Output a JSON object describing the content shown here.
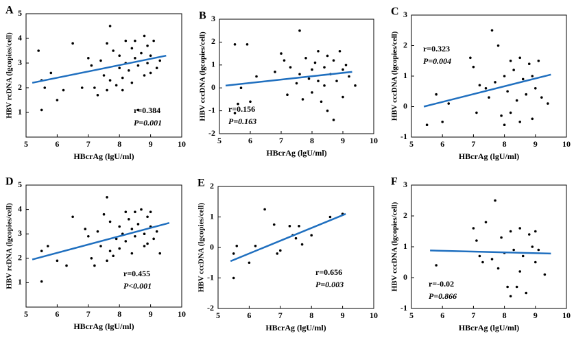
{
  "chart_data": [
    {
      "type": "scatter",
      "panel": "A",
      "xlabel": "HBcrAg (lgU/ml)",
      "ylabel": "HBV rcDNA (lgcopies/cell)",
      "xlim": [
        5,
        10
      ],
      "xticks": [
        5,
        6,
        7,
        8,
        9,
        10
      ],
      "ylim": [
        0,
        5
      ],
      "yticks": [
        1,
        2,
        3,
        4,
        5
      ],
      "x": [
        5.4,
        5.5,
        5.6,
        5.5,
        5.8,
        6.0,
        6.2,
        6.5,
        6.8,
        7.0,
        7.1,
        7.2,
        7.3,
        7.4,
        7.5,
        7.6,
        7.7,
        7.7,
        7.8,
        7.9,
        8.0,
        8.0,
        8.1,
        8.2,
        8.2,
        8.3,
        8.4,
        8.4,
        8.5,
        8.5,
        8.6,
        8.6,
        8.7,
        8.8,
        8.8,
        8.9,
        8.9,
        9.0,
        9.0,
        9.1,
        9.2,
        9.3,
        7.6,
        8.1
      ],
      "y": [
        3.5,
        2.3,
        2.0,
        1.1,
        2.6,
        1.5,
        1.9,
        3.8,
        2.0,
        3.2,
        2.9,
        2.0,
        1.7,
        3.1,
        2.5,
        3.8,
        4.5,
        2.3,
        3.5,
        2.1,
        2.8,
        3.3,
        2.4,
        3.0,
        3.9,
        2.7,
        3.6,
        2.2,
        3.2,
        3.9,
        2.9,
        1.1,
        3.4,
        4.1,
        2.5,
        3.0,
        3.7,
        2.6,
        3.3,
        3.9,
        2.8,
        3.1,
        1.9,
        1.9
      ],
      "fit": {
        "x": [
          5.2,
          9.5
        ],
        "y": [
          2.2,
          3.3
        ],
        "color": "#1f6fbf"
      },
      "point_color": "#000000",
      "r_label": "r=0.384",
      "p_label": "P=0.001",
      "p_color": "#e0262d"
    },
    {
      "type": "scatter",
      "panel": "B",
      "xlabel": "HBcrAg (lgU/ml)",
      "ylabel": "HBV cccDNA (lgcopies/cell)",
      "xlim": [
        5,
        10
      ],
      "xticks": [
        5,
        6,
        7,
        8,
        9,
        10
      ],
      "ylim": [
        -2,
        3
      ],
      "yticks": [
        -2,
        -1,
        0,
        1,
        2,
        3
      ],
      "x": [
        5.5,
        5.5,
        5.6,
        5.7,
        5.9,
        6.0,
        6.2,
        6.8,
        7.0,
        7.1,
        7.2,
        7.3,
        7.5,
        7.6,
        7.6,
        7.7,
        7.8,
        7.9,
        8.0,
        8.0,
        8.1,
        8.2,
        8.2,
        8.3,
        8.4,
        8.4,
        8.5,
        8.5,
        8.6,
        8.7,
        8.7,
        8.8,
        8.9,
        9.0,
        9.0,
        9.1,
        9.2,
        9.4
      ],
      "y": [
        1.9,
        -1.1,
        -0.7,
        0.0,
        1.9,
        -0.6,
        0.5,
        0.7,
        1.5,
        1.2,
        -0.3,
        0.9,
        0.2,
        2.5,
        0.6,
        -0.5,
        1.3,
        0.4,
        0.8,
        -0.2,
        1.1,
        0.3,
        1.6,
        -0.6,
        0.9,
        0.1,
        1.4,
        -1.0,
        0.6,
        -1.4,
        1.2,
        0.3,
        1.6,
        0.8,
        -0.4,
        1.0,
        0.5,
        0.1
      ],
      "fit": {
        "x": [
          5.2,
          9.3
        ],
        "y": [
          0.1,
          0.7
        ],
        "color": "#1f6fbf"
      },
      "point_color": "#000000",
      "r_label": "r=0.156",
      "p_label": "P=0.163",
      "p_color": "#000000"
    },
    {
      "type": "scatter",
      "panel": "C",
      "xlabel": "HBcrAg (lgU/ml)",
      "ylabel": "HBV cccDNA (lgcopies/cell)",
      "xlim": [
        5,
        10
      ],
      "xticks": [
        5,
        6,
        7,
        8,
        9,
        10
      ],
      "ylim": [
        -1,
        3
      ],
      "yticks": [
        -1,
        0,
        1,
        2,
        3
      ],
      "x": [
        5.5,
        5.8,
        6.0,
        6.2,
        6.9,
        7.0,
        7.1,
        7.2,
        7.4,
        7.5,
        7.6,
        7.7,
        7.8,
        7.9,
        8.0,
        8.0,
        8.1,
        8.2,
        8.2,
        8.3,
        8.4,
        8.5,
        8.5,
        8.6,
        8.7,
        8.8,
        8.9,
        8.9,
        9.0,
        9.1,
        9.2,
        9.4
      ],
      "y": [
        -0.6,
        0.4,
        -0.5,
        0.1,
        1.6,
        1.3,
        -0.2,
        0.7,
        0.6,
        0.3,
        2.5,
        0.8,
        2.0,
        -0.3,
        1.0,
        -0.6,
        0.5,
        1.5,
        -0.2,
        1.2,
        0.2,
        1.6,
        -0.5,
        0.9,
        0.4,
        1.4,
        -0.4,
        1.0,
        0.6,
        1.5,
        0.3,
        0.1
      ],
      "fit": {
        "x": [
          5.4,
          9.5
        ],
        "y": [
          0.0,
          1.05
        ],
        "color": "#1f6fbf"
      },
      "point_color": "#000000",
      "r_label": "r=0.323",
      "p_label": "P=0.004",
      "p_color": "#e0262d"
    },
    {
      "type": "scatter",
      "panel": "D",
      "xlabel": "HBcrAg (lgU/ml)",
      "ylabel": "HBV rcDNA (lgcopies/cell)",
      "xlim": [
        5,
        10
      ],
      "xticks": [
        5,
        6,
        7,
        8,
        9,
        10
      ],
      "ylim": [
        0,
        5
      ],
      "yticks": [
        1,
        2,
        3,
        4,
        5
      ],
      "x": [
        5.5,
        5.5,
        5.7,
        6.0,
        6.3,
        6.5,
        6.9,
        7.0,
        7.1,
        7.2,
        7.3,
        7.4,
        7.5,
        7.6,
        7.7,
        7.7,
        7.8,
        7.9,
        8.0,
        8.0,
        8.1,
        8.2,
        8.2,
        8.3,
        8.4,
        8.4,
        8.5,
        8.5,
        8.6,
        8.7,
        8.8,
        8.8,
        8.9,
        8.9,
        9.0,
        9.0,
        9.1,
        9.2,
        9.3,
        7.6
      ],
      "y": [
        1.05,
        2.3,
        2.5,
        1.9,
        1.7,
        3.7,
        3.2,
        2.9,
        2.0,
        1.7,
        3.1,
        2.5,
        3.8,
        4.5,
        2.3,
        3.5,
        2.1,
        2.8,
        3.3,
        2.4,
        3.0,
        3.9,
        2.7,
        3.6,
        2.2,
        3.2,
        3.9,
        2.9,
        3.4,
        4.0,
        2.5,
        3.0,
        3.7,
        2.6,
        3.3,
        3.9,
        2.8,
        3.1,
        2.2,
        1.9
      ],
      "fit": {
        "x": [
          5.2,
          9.6
        ],
        "y": [
          1.95,
          3.45
        ],
        "color": "#1f6fbf"
      },
      "point_color": "#000000",
      "r_label": "r=0.455",
      "p_label": "P<0.001",
      "p_color": "#e0262d"
    },
    {
      "type": "scatter",
      "panel": "E",
      "xlabel": "HBcrAg (lgU/ml)",
      "ylabel": "HBV cccDNA (lgcopies/cell)",
      "xlim": [
        5,
        10
      ],
      "xticks": [
        5,
        6,
        7,
        8,
        9,
        10
      ],
      "ylim": [
        -2,
        2
      ],
      "yticks": [
        -2,
        -1,
        0,
        1,
        2
      ],
      "x": [
        5.5,
        5.5,
        5.6,
        6.0,
        6.2,
        6.5,
        6.8,
        6.9,
        7.0,
        7.3,
        7.4,
        7.5,
        7.6,
        7.7,
        8.0,
        8.6,
        9.0
      ],
      "y": [
        -0.2,
        -1.0,
        0.05,
        -0.5,
        0.05,
        1.25,
        0.75,
        -0.2,
        -0.1,
        0.7,
        0.4,
        0.3,
        0.7,
        0.1,
        0.4,
        1.0,
        1.1
      ],
      "fit": {
        "x": [
          5.4,
          9.1
        ],
        "y": [
          -0.45,
          1.1
        ],
        "color": "#1f6fbf"
      },
      "point_color": "#000000",
      "r_label": "r=0.656",
      "p_label": "P=0.003",
      "p_color": "#e0262d"
    },
    {
      "type": "scatter",
      "panel": "F",
      "xlabel": "HBcrAg (lgU/ml)",
      "ylabel": "HBV cccDNA (lgcopies/cell)",
      "xlim": [
        5,
        10
      ],
      "xticks": [
        5,
        6,
        7,
        8,
        9,
        10
      ],
      "ylim": [
        -1,
        3
      ],
      "yticks": [
        -1,
        0,
        1,
        2,
        3
      ],
      "x": [
        5.8,
        7.0,
        7.1,
        7.2,
        7.3,
        7.4,
        7.6,
        7.7,
        7.8,
        7.9,
        8.0,
        8.1,
        8.2,
        8.2,
        8.3,
        8.4,
        8.5,
        8.5,
        8.6,
        8.7,
        8.8,
        8.9,
        9.0,
        9.0,
        9.1,
        9.3
      ],
      "y": [
        0.4,
        1.6,
        1.2,
        0.7,
        0.5,
        1.8,
        0.6,
        2.5,
        0.3,
        1.3,
        0.8,
        -0.3,
        1.5,
        -0.6,
        0.9,
        -0.3,
        1.6,
        0.2,
        0.7,
        -0.5,
        1.4,
        1.0,
        0.5,
        1.5,
        0.9,
        0.1
      ],
      "fit": {
        "x": [
          5.6,
          9.5
        ],
        "y": [
          0.88,
          0.78
        ],
        "color": "#1f6fbf"
      },
      "point_color": "#000000",
      "r_label": "r=-0.02",
      "p_label": "P=0.866",
      "p_color": "#000000"
    }
  ]
}
